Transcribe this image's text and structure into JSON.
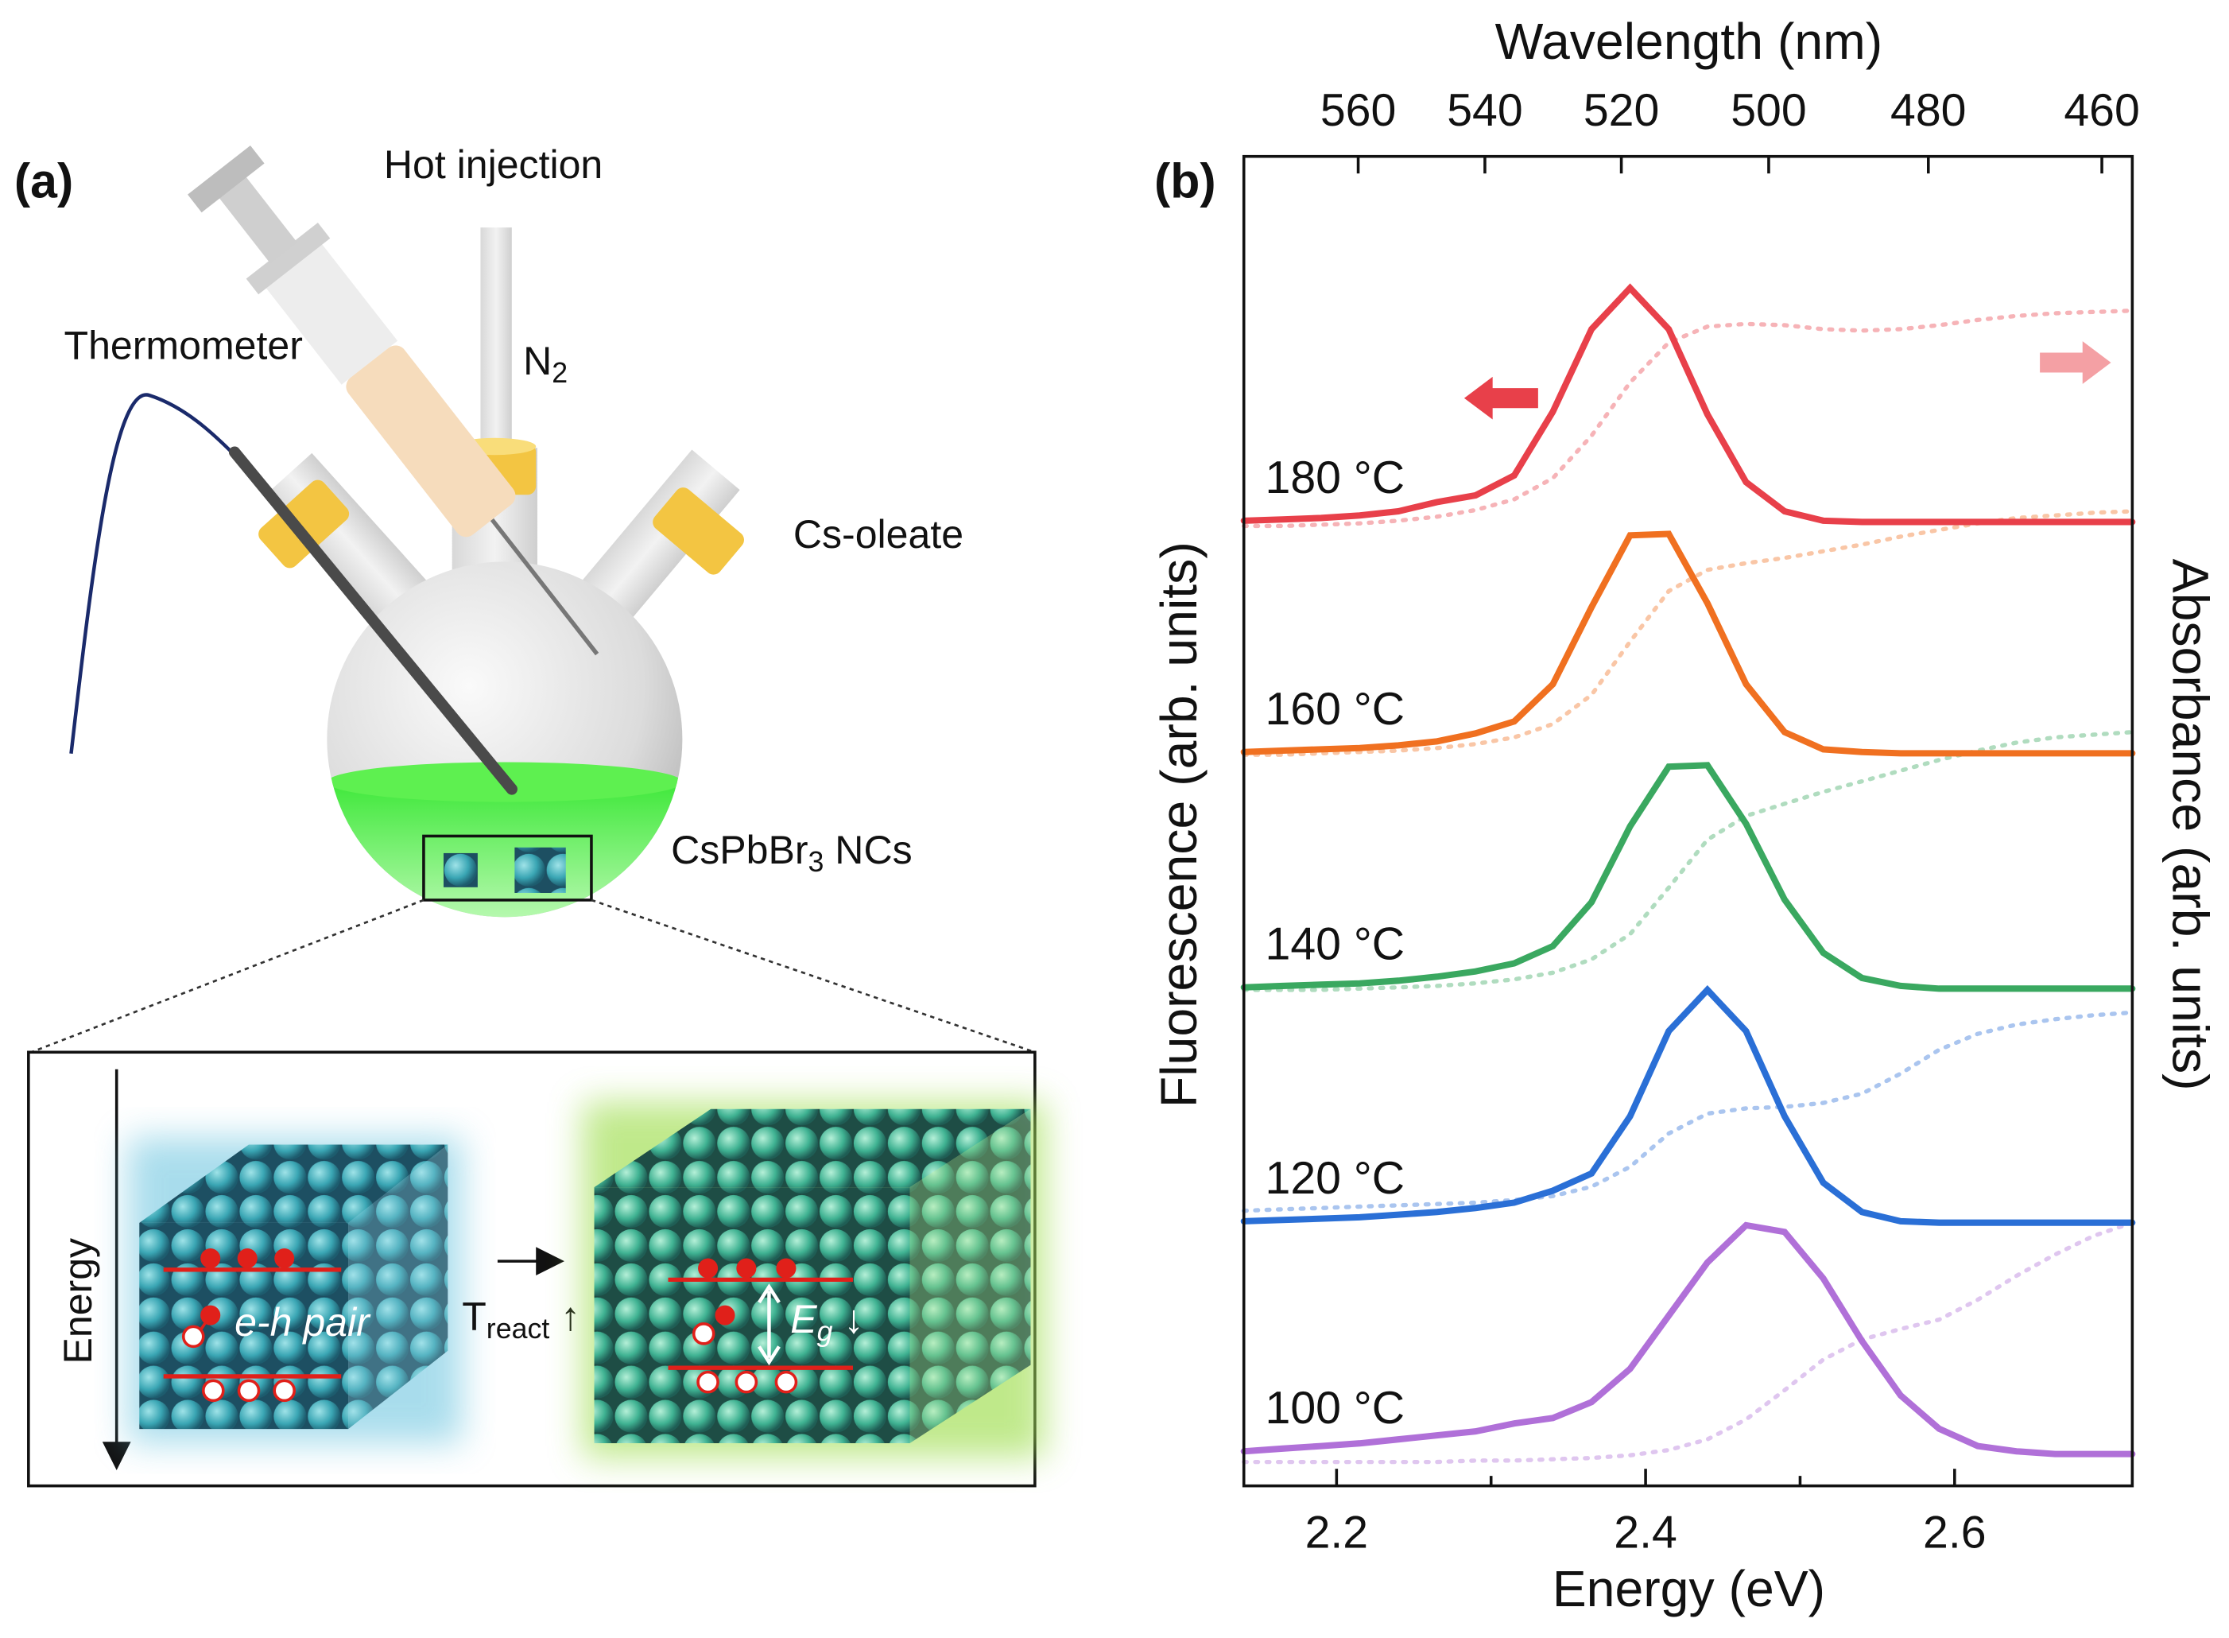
{
  "diagram": {
    "panel_label": "(a)",
    "hot_injection": "Hot injection",
    "thermometer": "Thermometer",
    "n2": {
      "main": "N",
      "sub": "2"
    },
    "cs_oleate": "Cs-oleate",
    "ncs": {
      "main": "CsPbBr",
      "sub": "3",
      "rest": " NCs"
    },
    "energy": "Energy",
    "eh_pair": "e-h pair",
    "treact": {
      "main": "T",
      "sub": "react",
      "rest": " ↑"
    },
    "eg": {
      "main": "E",
      "sub": "g",
      "rest": " ↓"
    }
  },
  "chart_data": {
    "type": "line",
    "panel_label": "(b)",
    "xlabel": "Energy (eV)",
    "x2label": "Wavelength (nm)",
    "ylabel": "Fluorescence (arb. units)",
    "y2label": "Absorbance (arb. units)",
    "x": [
      2.14,
      2.165,
      2.19,
      2.215,
      2.24,
      2.265,
      2.29,
      2.315,
      2.34,
      2.365,
      2.39,
      2.415,
      2.44,
      2.465,
      2.49,
      2.515,
      2.54,
      2.565,
      2.59,
      2.615,
      2.64,
      2.665,
      2.69,
      2.715
    ],
    "xlim": [
      2.14,
      2.715
    ],
    "xticks": [
      2.2,
      2.4,
      2.6
    ],
    "xminor": [
      2.3,
      2.5
    ],
    "x2ticks": [
      560,
      540,
      520,
      500,
      480,
      460
    ],
    "ylim": [
      0,
      100
    ],
    "series": [
      {
        "name": "180 °C",
        "color": "#e8404a",
        "linestyle": "solid",
        "values": [
          72.6,
          72.7,
          72.8,
          73.0,
          73.3,
          74.0,
          74.5,
          76.0,
          80.8,
          87.0,
          90.1,
          87.0,
          80.6,
          75.5,
          73.3,
          72.6,
          72.5,
          72.5,
          72.5,
          72.5,
          72.5,
          72.5,
          72.5,
          72.5
        ]
      },
      {
        "name": "160 °C",
        "color": "#f07020",
        "linestyle": "solid",
        "values": [
          55.2,
          55.3,
          55.4,
          55.5,
          55.7,
          56.0,
          56.6,
          57.5,
          60.3,
          66.1,
          71.5,
          71.6,
          66.4,
          60.3,
          56.7,
          55.4,
          55.2,
          55.1,
          55.1,
          55.1,
          55.1,
          55.1,
          55.1,
          55.1
        ]
      },
      {
        "name": "140 °C",
        "color": "#3aa860",
        "linestyle": "solid",
        "values": [
          37.5,
          37.6,
          37.7,
          37.8,
          38.0,
          38.3,
          38.7,
          39.3,
          40.6,
          43.9,
          49.6,
          54.1,
          54.2,
          49.8,
          44.1,
          40.1,
          38.2,
          37.6,
          37.4,
          37.4,
          37.4,
          37.4,
          37.4,
          37.4
        ]
      },
      {
        "name": "120 °C",
        "color": "#2a6fd6",
        "linestyle": "solid",
        "values": [
          19.9,
          20.0,
          20.1,
          20.2,
          20.4,
          20.6,
          20.9,
          21.3,
          22.2,
          23.5,
          27.8,
          34.2,
          37.3,
          34.2,
          27.8,
          22.8,
          20.6,
          19.9,
          19.8,
          19.8,
          19.8,
          19.8,
          19.8,
          19.8
        ]
      },
      {
        "name": "100 °C",
        "color": "#b070d8",
        "linestyle": "solid",
        "values": [
          2.6,
          2.8,
          3.0,
          3.2,
          3.5,
          3.8,
          4.1,
          4.7,
          5.1,
          6.3,
          8.8,
          12.8,
          16.8,
          19.6,
          19.1,
          15.6,
          10.9,
          6.8,
          4.3,
          3.0,
          2.6,
          2.4,
          2.4,
          2.4
        ]
      },
      {
        "color": "#e8404a",
        "linestyle": "dotted",
        "alpha": 0.4,
        "values": [
          72.2,
          72.2,
          72.3,
          72.4,
          72.6,
          72.9,
          73.4,
          74.2,
          75.8,
          79.0,
          83.0,
          86.0,
          87.2,
          87.4,
          87.3,
          87.0,
          86.9,
          87.0,
          87.3,
          87.7,
          88.0,
          88.2,
          88.3,
          88.4
        ]
      },
      {
        "color": "#f07020",
        "linestyle": "dotted",
        "alpha": 0.4,
        "values": [
          55.0,
          55.0,
          55.1,
          55.2,
          55.3,
          55.5,
          55.8,
          56.3,
          57.3,
          59.5,
          63.5,
          67.3,
          68.9,
          69.4,
          69.8,
          70.3,
          70.8,
          71.4,
          71.9,
          72.4,
          72.8,
          73.0,
          73.2,
          73.3
        ]
      },
      {
        "color": "#3aa860",
        "linestyle": "dotted",
        "alpha": 0.4,
        "values": [
          37.3,
          37.3,
          37.3,
          37.4,
          37.5,
          37.6,
          37.8,
          38.1,
          38.6,
          39.6,
          41.5,
          45.0,
          48.6,
          50.4,
          51.3,
          52.2,
          53.0,
          53.8,
          54.6,
          55.3,
          55.9,
          56.3,
          56.5,
          56.7
        ]
      },
      {
        "color": "#2a6fd6",
        "linestyle": "dotted",
        "alpha": 0.4,
        "values": [
          20.7,
          20.8,
          20.9,
          21.0,
          21.1,
          21.2,
          21.3,
          21.5,
          21.8,
          22.5,
          24.0,
          26.5,
          28.0,
          28.4,
          28.5,
          28.8,
          29.5,
          31.0,
          32.8,
          34.0,
          34.7,
          35.1,
          35.4,
          35.6
        ]
      },
      {
        "color": "#b070d8",
        "linestyle": "dotted",
        "alpha": 0.4,
        "values": [
          1.8,
          1.8,
          1.8,
          1.8,
          1.8,
          1.8,
          1.9,
          1.9,
          2.0,
          2.1,
          2.3,
          2.7,
          3.5,
          5.0,
          7.2,
          9.5,
          11.0,
          11.8,
          12.5,
          14.0,
          15.8,
          17.4,
          18.8,
          19.8
        ]
      }
    ]
  }
}
